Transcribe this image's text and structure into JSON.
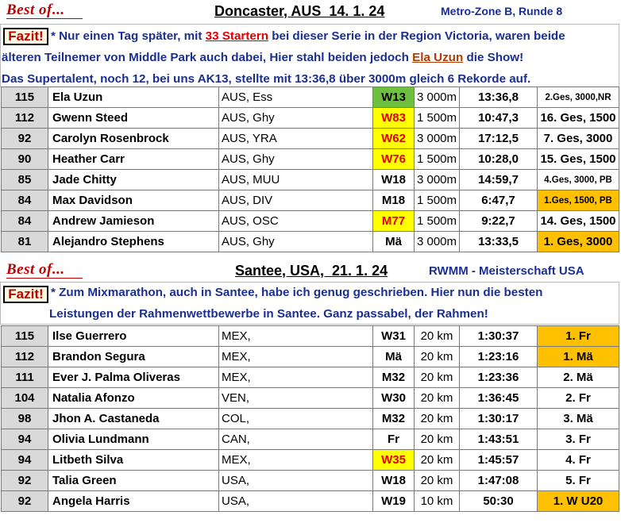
{
  "section1": {
    "bestof": "Best of...",
    "title": "Doncaster, AUS  14. 1. 24",
    "subtitle": "Metro-Zone B, Runde 8",
    "fazit_label": "Fazit!",
    "fazit_line1_a": "* Nur einen Tag später, mit ",
    "fazit_line1_b": "33 Startern",
    "fazit_line1_c": " bei dieser Serie in der Region Victoria, waren beide",
    "fazit_line2_a": "älteren Teilnemer von Middle Park auch dabei, Hier stahl beiden jedoch ",
    "fazit_line2_b": "Ela Uzun",
    "fazit_line2_c": " die Show!",
    "fazit_line3": "Das Supertalent, noch 12, bei uns AK13, stellte mit 13:36,8 über 3000m gleich 6 Rekorde auf.",
    "rows": [
      {
        "pts": "115",
        "name": "Ela Uzun",
        "nat": "AUS, Ess",
        "cls": "W13",
        "cls_style": "green",
        "dist": "3 000m",
        "time": "13:36,8",
        "place": "2.Ges, 3000,NR",
        "place_style": "small"
      },
      {
        "pts": "112",
        "name": "Gwenn Steed",
        "nat": "AUS, Ghy",
        "cls": "W83",
        "cls_style": "yellow",
        "dist": "1 500m",
        "time": "10:47,3",
        "place": "16. Ges, 1500",
        "place_style": ""
      },
      {
        "pts": "92",
        "name": "Carolyn Rosenbrock",
        "nat": "AUS, YRA",
        "cls": "W62",
        "cls_style": "yellow",
        "dist": "3 000m",
        "time": "17:12,5",
        "place": "7. Ges, 3000",
        "place_style": ""
      },
      {
        "pts": "90",
        "name": "Heather Carr",
        "nat": "AUS, Ghy",
        "cls": "W76",
        "cls_style": "yellow",
        "dist": "1 500m",
        "time": "10:28,0",
        "place": "15. Ges, 1500",
        "place_style": ""
      },
      {
        "pts": "85",
        "name": "Jade Chitty",
        "nat": "AUS, MUU",
        "cls": "W18",
        "cls_style": "",
        "dist": "3 000m",
        "time": "14:59,7",
        "place": "4.Ges, 3000, PB",
        "place_style": "small"
      },
      {
        "pts": "84",
        "name": "Max Davidson",
        "nat": "AUS, DIV",
        "cls": "M18",
        "cls_style": "",
        "dist": "1 500m",
        "time": "6:47,7",
        "place": "1.Ges, 1500, PB",
        "place_style": "orange small"
      },
      {
        "pts": "84",
        "name": "Andrew Jamieson",
        "nat": "AUS, OSC",
        "cls": "M77",
        "cls_style": "yellow",
        "dist": "1 500m",
        "time": "9:22,7",
        "place": "14. Ges, 1500",
        "place_style": ""
      },
      {
        "pts": "81",
        "name": "Alejandro Stephens",
        "nat": "AUS, Ghy",
        "cls": "Mä",
        "cls_style": "",
        "dist": "3 000m",
        "time": "13:33,5",
        "place": "1. Ges, 3000",
        "place_style": "orange"
      }
    ]
  },
  "section2": {
    "bestof": "Best of...",
    "title": "Santee, USA,  21. 1. 24",
    "subtitle": "RWMM - Meisterschaft USA",
    "fazit_label": "Fazit!",
    "fazit_line1": "* Zum Mixmarathon, auch in Santee, habe ich genug geschrieben. Hier nun die besten",
    "fazit_line2": "Leistungen der Rahmenwettbewerbe in Santee. Ganz passabel, der Rahmen!",
    "rows": [
      {
        "pts": "115",
        "name": "Ilse Guerrero",
        "nat": "MEX,",
        "cls": "W31",
        "cls_style": "",
        "dist": "20 km",
        "time": "1:30:37",
        "place": "1. Fr",
        "place_style": "orange"
      },
      {
        "pts": "112",
        "name": "Brandon Segura",
        "nat": "MEX,",
        "cls": "Mä",
        "cls_style": "",
        "dist": "20 km",
        "time": "1:23:16",
        "place": "1. Mä",
        "place_style": "orange"
      },
      {
        "pts": "111",
        "name": "Ever J. Palma Oliveras",
        "nat": "MEX,",
        "cls": "M32",
        "cls_style": "",
        "dist": "20 km",
        "time": "1:23:36",
        "place": "2. Mä",
        "place_style": ""
      },
      {
        "pts": "104",
        "name": "Natalia Afonzo",
        "nat": "VEN,",
        "cls": "W30",
        "cls_style": "",
        "dist": "20 km",
        "time": "1:36:45",
        "place": "2. Fr",
        "place_style": ""
      },
      {
        "pts": "98",
        "name": "Jhon A. Castaneda",
        "nat": "COL,",
        "cls": "M32",
        "cls_style": "",
        "dist": "20 km",
        "time": "1:30:17",
        "place": "3. Mä",
        "place_style": ""
      },
      {
        "pts": "94",
        "name": "Olivia Lundmann",
        "nat": "CAN,",
        "cls": "Fr",
        "cls_style": "",
        "dist": "20 km",
        "time": "1:43:51",
        "place": "3. Fr",
        "place_style": ""
      },
      {
        "pts": "94",
        "name": "Litbeth Silva",
        "nat": "MEX,",
        "cls": "W35",
        "cls_style": "yellow",
        "dist": "20 km",
        "time": "1:45:57",
        "place": "4. Fr",
        "place_style": ""
      },
      {
        "pts": "92",
        "name": "Talia Green",
        "nat": "USA,",
        "cls": "W18",
        "cls_style": "",
        "dist": "20 km",
        "time": "1:47:08",
        "place": "5. Fr",
        "place_style": ""
      },
      {
        "pts": "92",
        "name": "Angela Harris",
        "nat": "USA,",
        "cls": "W19",
        "cls_style": "",
        "dist": "10 km",
        "time": "50:30",
        "place": "1. W U20",
        "place_style": "orange"
      }
    ]
  }
}
